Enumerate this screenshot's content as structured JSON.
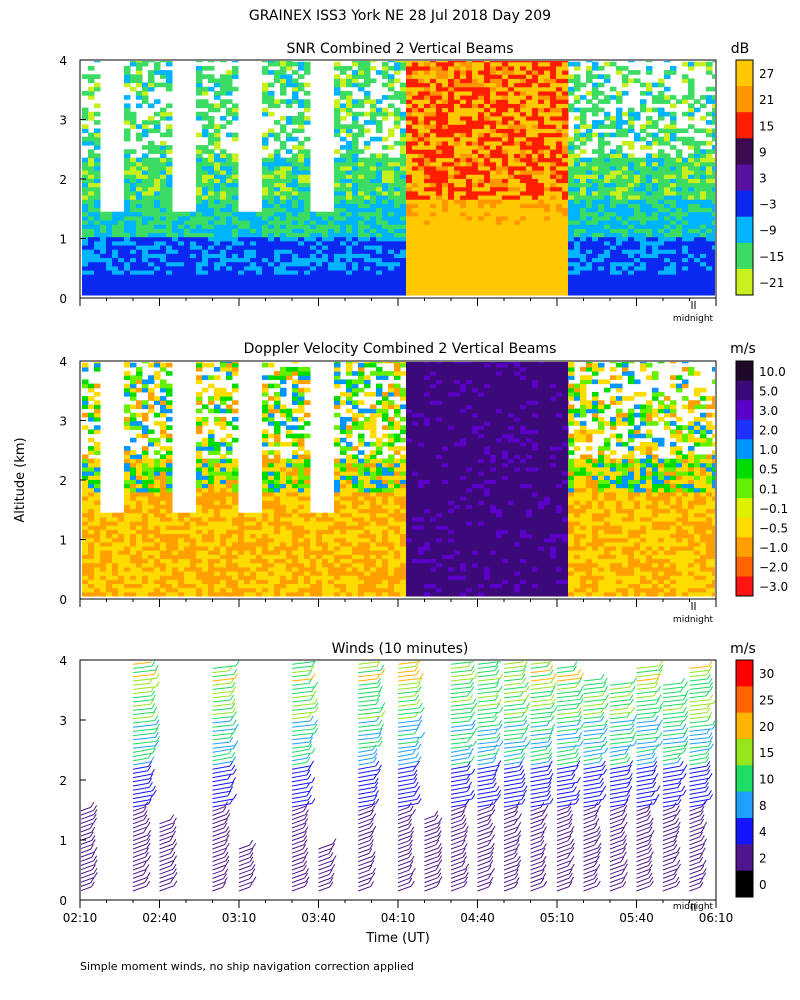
{
  "header": {
    "title": "GRAINEX ISS3 York NE  28 Jul 2018 Day 209"
  },
  "shared": {
    "ylabel": "Altitude (km)",
    "xlabel": "Time (UT)",
    "midnight_label": "midnight",
    "footnote": "Simple moment winds, no ship navigation correction applied"
  },
  "chart_data": [
    {
      "type": "heatmap",
      "title": "SNR Combined 2 Vertical Beams",
      "xlabel": "",
      "ylabel": "Altitude (km)",
      "x_range_utc": [
        "02:10",
        "06:10"
      ],
      "ylim": [
        0,
        4
      ],
      "y_ticks": [
        0,
        1,
        2,
        3,
        4
      ],
      "colorbar": {
        "unit": "dB",
        "ticks": [
          "27",
          "21",
          "15",
          "9",
          "3",
          "−3",
          "−9",
          "−15",
          "−21"
        ],
        "colors": [
          "#ffc800",
          "#ff9600",
          "#ff1e00",
          "#3c0a50",
          "#5a10a0",
          "#0a28f0",
          "#00b4ff",
          "#3cdc64",
          "#c8f01e"
        ]
      },
      "features": {
        "rain_band_utc": [
          "04:12",
          "05:12"
        ],
        "rain_band_value_db": 27,
        "low_level_value_db": -3,
        "upper_level_value_db": -15
      }
    },
    {
      "type": "heatmap",
      "title": "Doppler Velocity Combined 2 Vertical Beams",
      "xlabel": "",
      "ylabel": "Altitude (km)",
      "x_range_utc": [
        "02:10",
        "06:10"
      ],
      "ylim": [
        0,
        4
      ],
      "y_ticks": [
        0,
        1,
        2,
        3,
        4
      ],
      "colorbar": {
        "unit": "m/s",
        "ticks": [
          "10.0",
          "5.0",
          "3.0",
          "2.0",
          "1.0",
          "0.5",
          "0.1",
          "−0.1",
          "−0.5",
          "−1.0",
          "−2.0",
          "−3.0"
        ],
        "colors": [
          "#1e0a28",
          "#3c0a78",
          "#5a00c8",
          "#1e32ff",
          "#0096ff",
          "#00dc00",
          "#64f000",
          "#dcf000",
          "#ffdc00",
          "#ffa000",
          "#ff6400",
          "#ff1414"
        ]
      },
      "features": {
        "rain_band_utc": [
          "04:12",
          "05:12"
        ],
        "rain_band_value_ms": 5.0,
        "clear_air_value_ms": -0.5
      }
    },
    {
      "type": "scatter",
      "title": "Winds (10 minutes)",
      "xlabel": "Time (UT)",
      "ylabel": "Altitude (km)",
      "x_ticks": [
        "02:10",
        "02:40",
        "03:10",
        "03:40",
        "04:10",
        "04:40",
        "05:10",
        "05:40",
        "06:10"
      ],
      "ylim": [
        0,
        4
      ],
      "y_ticks": [
        0,
        1,
        2,
        3,
        4
      ],
      "colorbar": {
        "unit": "m/s",
        "ticks": [
          "30",
          "25",
          "20",
          "15",
          "10",
          "8",
          "4",
          "2",
          "0"
        ],
        "colors": [
          "#ff0000",
          "#ff6400",
          "#ffb400",
          "#96e61e",
          "#1edc64",
          "#1ea0ff",
          "#1414ff",
          "#50148c",
          "#000000"
        ]
      },
      "profiles": [
        {
          "time_utc": "02:10",
          "top_km": 1.5
        },
        {
          "time_utc": "02:30",
          "top_km": 4.0
        },
        {
          "time_utc": "02:40",
          "top_km": 1.3
        },
        {
          "time_utc": "03:00",
          "top_km": 3.9
        },
        {
          "time_utc": "03:10",
          "top_km": 0.9
        },
        {
          "time_utc": "03:30",
          "top_km": 4.0
        },
        {
          "time_utc": "03:40",
          "top_km": 0.9
        },
        {
          "time_utc": "03:55",
          "top_km": 4.0
        },
        {
          "time_utc": "04:10",
          "top_km": 4.0
        },
        {
          "time_utc": "04:20",
          "top_km": 1.4
        },
        {
          "time_utc": "04:30",
          "top_km": 4.0
        },
        {
          "time_utc": "04:40",
          "top_km": 4.0
        },
        {
          "time_utc": "04:50",
          "top_km": 4.0
        },
        {
          "time_utc": "05:00",
          "top_km": 4.0
        },
        {
          "time_utc": "05:10",
          "top_km": 3.9
        },
        {
          "time_utc": "05:20",
          "top_km": 3.7
        },
        {
          "time_utc": "05:30",
          "top_km": 3.6
        },
        {
          "time_utc": "05:40",
          "top_km": 3.9
        },
        {
          "time_utc": "05:50",
          "top_km": 3.6
        },
        {
          "time_utc": "06:00",
          "top_km": 3.9
        }
      ]
    }
  ]
}
